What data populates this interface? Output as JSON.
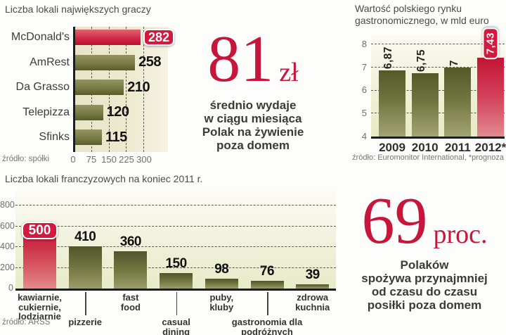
{
  "colors": {
    "accent_red": "#c6163b",
    "badge_red": "#d31940",
    "bar_olive": "#6b6f3a",
    "plot_cream": "#ebe8cc",
    "text_dark": "#3a3a3a",
    "text_gray": "#757575"
  },
  "stats": {
    "spend": {
      "value": "81",
      "unit": "zł",
      "caption": "średnio wydaje\nw ciągu miesiąca\nPolak na żywienie\npoza domem"
    },
    "eatout": {
      "value": "69",
      "unit": "proc.",
      "caption": "Polaków\nspożywa przynajmniej\nod czasu do czasu\nposiłki poza domem"
    }
  },
  "chart_data": [
    {
      "id": "players",
      "type": "bar",
      "orientation": "horizontal",
      "title": "Liczba lokali największych graczy",
      "categories": [
        "McDonald's",
        "AmRest",
        "Da Grasso",
        "Telepizza",
        "Sfinks"
      ],
      "values": [
        282,
        258,
        210,
        120,
        115
      ],
      "value_labels": [
        "282",
        "258",
        "210",
        "120",
        "115"
      ],
      "highlight_index": 0,
      "xlim": [
        0,
        300
      ],
      "x_ticks": [
        "0",
        "75",
        "150",
        "225",
        "300"
      ],
      "grid": "vertical-dashed",
      "source": "źródło: spółki"
    },
    {
      "id": "market",
      "type": "bar",
      "orientation": "vertical",
      "title": "Wartość polskiego rynku\ngastronomicznego, w mld euro",
      "categories": [
        "2009",
        "2010",
        "2011",
        "2012*"
      ],
      "values": [
        6.87,
        6.75,
        7,
        7.43
      ],
      "value_labels": [
        "6,87",
        "6,75",
        "7",
        "7,43"
      ],
      "highlight_index": 3,
      "ylim": [
        4,
        8
      ],
      "y_ticks": [
        "8",
        "7",
        "6",
        "5",
        "4"
      ],
      "grid": "horizontal-dashed",
      "source": "źródło: Euromonitor International, *prognoza"
    },
    {
      "id": "franchise",
      "type": "bar",
      "orientation": "vertical",
      "title": "Liczba lokali franczyzowych na koniec 2011 r.",
      "categories": [
        "kawiarnie, cukiernie, lodziarnie",
        "pizzerie",
        "fast food",
        "casual dining",
        "puby, kluby",
        "gastronomia dla podróżnych",
        "zdrowa kuchnia"
      ],
      "category_labels": [
        "kawiarnie,\ncukiernie,\nlodziarnie",
        "pizzerie",
        "fast\nfood",
        "casual\ndining",
        "puby,\nkluby",
        "gastronomia dla\npodróżnych",
        "zdrowa\nkuchnia"
      ],
      "values": [
        500,
        410,
        360,
        150,
        98,
        76,
        39
      ],
      "value_labels": [
        "500",
        "410",
        "360",
        "150",
        "98",
        "76",
        "39"
      ],
      "highlight_index": 0,
      "ylim": [
        0,
        800
      ],
      "y_ticks": [
        "800",
        "600",
        "400",
        "200",
        "0"
      ],
      "grid": "horizontal-dashed",
      "source": "źródło: ARSS"
    }
  ]
}
